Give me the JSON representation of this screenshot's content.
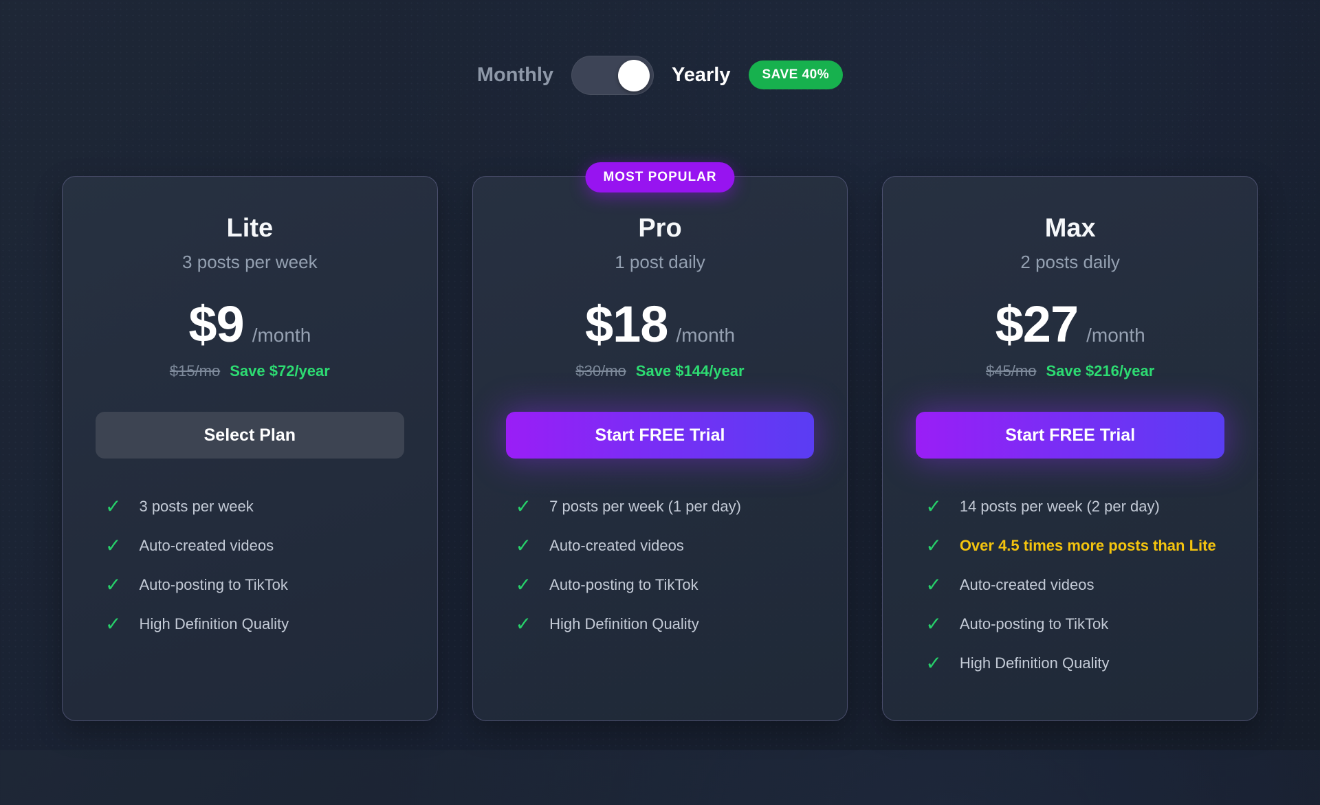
{
  "billing_toggle": {
    "monthly_label": "Monthly",
    "yearly_label": "Yearly",
    "save_badge": "SAVE 40%",
    "state": "yearly"
  },
  "icons": {
    "check": "✓"
  },
  "colors": {
    "accent_purple": "#9714f0",
    "cta_gradient_start": "#9a1ef6",
    "cta_gradient_end": "#5a3df3",
    "green_badge": "#17b14e",
    "green_text": "#2ddb72",
    "highlight_yellow": "#f4c40e",
    "page_background": "#1a2230",
    "card_background": "#242e3d"
  },
  "plans": [
    {
      "name": "Lite",
      "tagline": "3 posts per week",
      "badge": "",
      "price": "$9",
      "period": "/month",
      "original_price": "$15/mo",
      "savings": "Save $72/year",
      "cta_label": "Select Plan",
      "features": [
        {
          "text": "3 posts per week",
          "highlight": false
        },
        {
          "text": "Auto-created videos",
          "highlight": false
        },
        {
          "text": "Auto-posting to TikTok",
          "highlight": false
        },
        {
          "text": "High Definition Quality",
          "highlight": false
        }
      ]
    },
    {
      "name": "Pro",
      "tagline": "1 post daily",
      "badge": "MOST POPULAR",
      "price": "$18",
      "period": "/month",
      "original_price": "$30/mo",
      "savings": "Save $144/year",
      "cta_label": "Start FREE Trial",
      "features": [
        {
          "text": "7 posts per week (1 per day)",
          "highlight": false
        },
        {
          "text": "Auto-created videos",
          "highlight": false
        },
        {
          "text": "Auto-posting to TikTok",
          "highlight": false
        },
        {
          "text": "High Definition Quality",
          "highlight": false
        }
      ]
    },
    {
      "name": "Max",
      "tagline": "2 posts daily",
      "badge": "",
      "price": "$27",
      "period": "/month",
      "original_price": "$45/mo",
      "savings": "Save $216/year",
      "cta_label": "Start FREE Trial",
      "features": [
        {
          "text": "14 posts per week (2 per day)",
          "highlight": false
        },
        {
          "text": "Over 4.5 times more posts than Lite",
          "highlight": true
        },
        {
          "text": "Auto-created videos",
          "highlight": false
        },
        {
          "text": "Auto-posting to TikTok",
          "highlight": false
        },
        {
          "text": "High Definition Quality",
          "highlight": false
        }
      ]
    }
  ]
}
